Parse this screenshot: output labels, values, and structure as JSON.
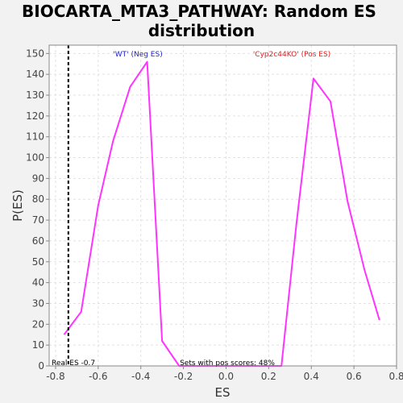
{
  "chart_data": {
    "type": "line",
    "title_lines": [
      "BIOCARTA_MTA3_PATHWAY: Random ES",
      "distribution"
    ],
    "xlabel": "ES",
    "ylabel": "P(ES)",
    "xlim": [
      -0.83,
      0.8
    ],
    "ylim": [
      0,
      154
    ],
    "xticks": [
      -0.8,
      -0.6,
      -0.4,
      -0.2,
      0.0,
      0.2,
      0.4,
      0.6,
      0.8
    ],
    "xtick_labels": [
      "-0.8",
      "-0.6",
      "-0.4",
      "-0.2",
      "0.0",
      "0.2",
      "0.4",
      "0.6",
      "0.8"
    ],
    "yticks": [
      0,
      10,
      20,
      30,
      40,
      50,
      60,
      70,
      80,
      90,
      100,
      110,
      120,
      130,
      140,
      150
    ],
    "ytick_labels": [
      "0",
      "10",
      "20",
      "30",
      "40",
      "50",
      "60",
      "70",
      "80",
      "90",
      "100",
      "110",
      "120",
      "130",
      "140",
      "150"
    ],
    "grid": true,
    "series": [
      {
        "color": "#ff33ff",
        "x": [
          -0.76,
          -0.68,
          -0.6,
          -0.53,
          -0.45,
          -0.37,
          -0.3,
          -0.22,
          -0.15,
          -0.07,
          0.0,
          0.1,
          0.2,
          0.26,
          0.33,
          0.41,
          0.49,
          0.57,
          0.65,
          0.72
        ],
        "y": [
          15,
          26,
          77,
          108,
          134,
          146,
          12,
          0,
          0,
          0,
          0,
          0,
          0,
          0,
          68,
          138,
          127,
          79,
          46,
          22
        ]
      }
    ],
    "real_es": {
      "x": -0.74,
      "label": "Real ES -0.7",
      "color": "#000000"
    },
    "annotations": {
      "neg_label": "'WT' (Neg ES)",
      "neg_color": "#2222cc",
      "pos_label": "'Cyp2c44KO' (Pos ES)",
      "pos_color": "#dd2222",
      "footer": "Sets with pos scores: 48%"
    }
  }
}
